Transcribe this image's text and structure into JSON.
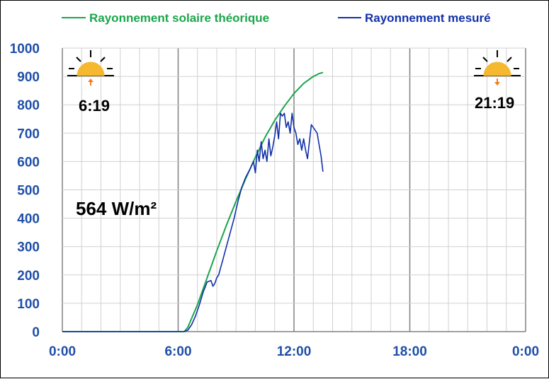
{
  "chart_data": {
    "type": "line",
    "xlabel": "",
    "ylabel": "",
    "xlim": [
      0,
      24
    ],
    "ylim": [
      0,
      1000
    ],
    "y_ticks": [
      "0",
      "100",
      "200",
      "300",
      "400",
      "500",
      "600",
      "700",
      "800",
      "900",
      "1000"
    ],
    "x_ticks": [
      "0:00",
      "6:00",
      "12:00",
      "18:00",
      "0:00"
    ],
    "grid": true,
    "legend_position": "top",
    "series": [
      {
        "name": "Rayonnement solaire théorique",
        "color": "#1aa64a",
        "x": [
          0,
          6.3167,
          6.5,
          7,
          7.5,
          8,
          8.5,
          9,
          9.5,
          10,
          10.5,
          11,
          11.5,
          12,
          12.5,
          13,
          13.3,
          13.5
        ],
        "values": [
          0,
          0,
          15,
          95,
          190,
          285,
          375,
          460,
          540,
          615,
          685,
          745,
          795,
          840,
          875,
          900,
          910,
          914
        ]
      },
      {
        "name": "Rayonnement mesuré",
        "color": "#1030a8",
        "x": [
          0,
          6.3,
          6.5,
          6.7,
          6.9,
          7.1,
          7.3,
          7.5,
          7.7,
          7.8,
          7.9,
          8.0,
          8.1,
          8.2,
          8.3,
          8.5,
          8.7,
          8.9,
          9.1,
          9.3,
          9.5,
          9.7,
          9.9,
          10.0,
          10.1,
          10.2,
          10.3,
          10.4,
          10.5,
          10.6,
          10.7,
          10.8,
          10.9,
          11.0,
          11.1,
          11.2,
          11.3,
          11.4,
          11.5,
          11.6,
          11.7,
          11.8,
          11.9,
          12.0,
          12.1,
          12.2,
          12.3,
          12.4,
          12.5,
          12.6,
          12.7,
          12.8,
          12.9,
          13.0,
          13.1,
          13.2,
          13.3,
          13.4,
          13.5
        ],
        "values": [
          0,
          0,
          5,
          25,
          55,
          95,
          140,
          175,
          180,
          160,
          170,
          190,
          200,
          225,
          250,
          300,
          350,
          400,
          460,
          510,
          545,
          570,
          600,
          560,
          640,
          600,
          670,
          610,
          640,
          600,
          680,
          620,
          650,
          690,
          740,
          680,
          770,
          760,
          770,
          720,
          740,
          700,
          770,
          720,
          700,
          660,
          680,
          640,
          680,
          640,
          610,
          670,
          730,
          720,
          710,
          700,
          660,
          620,
          564
        ]
      }
    ],
    "annotations": {
      "sunrise_time": "6:19",
      "sunset_time": "21:19",
      "current_value": "564 W/m²"
    }
  }
}
